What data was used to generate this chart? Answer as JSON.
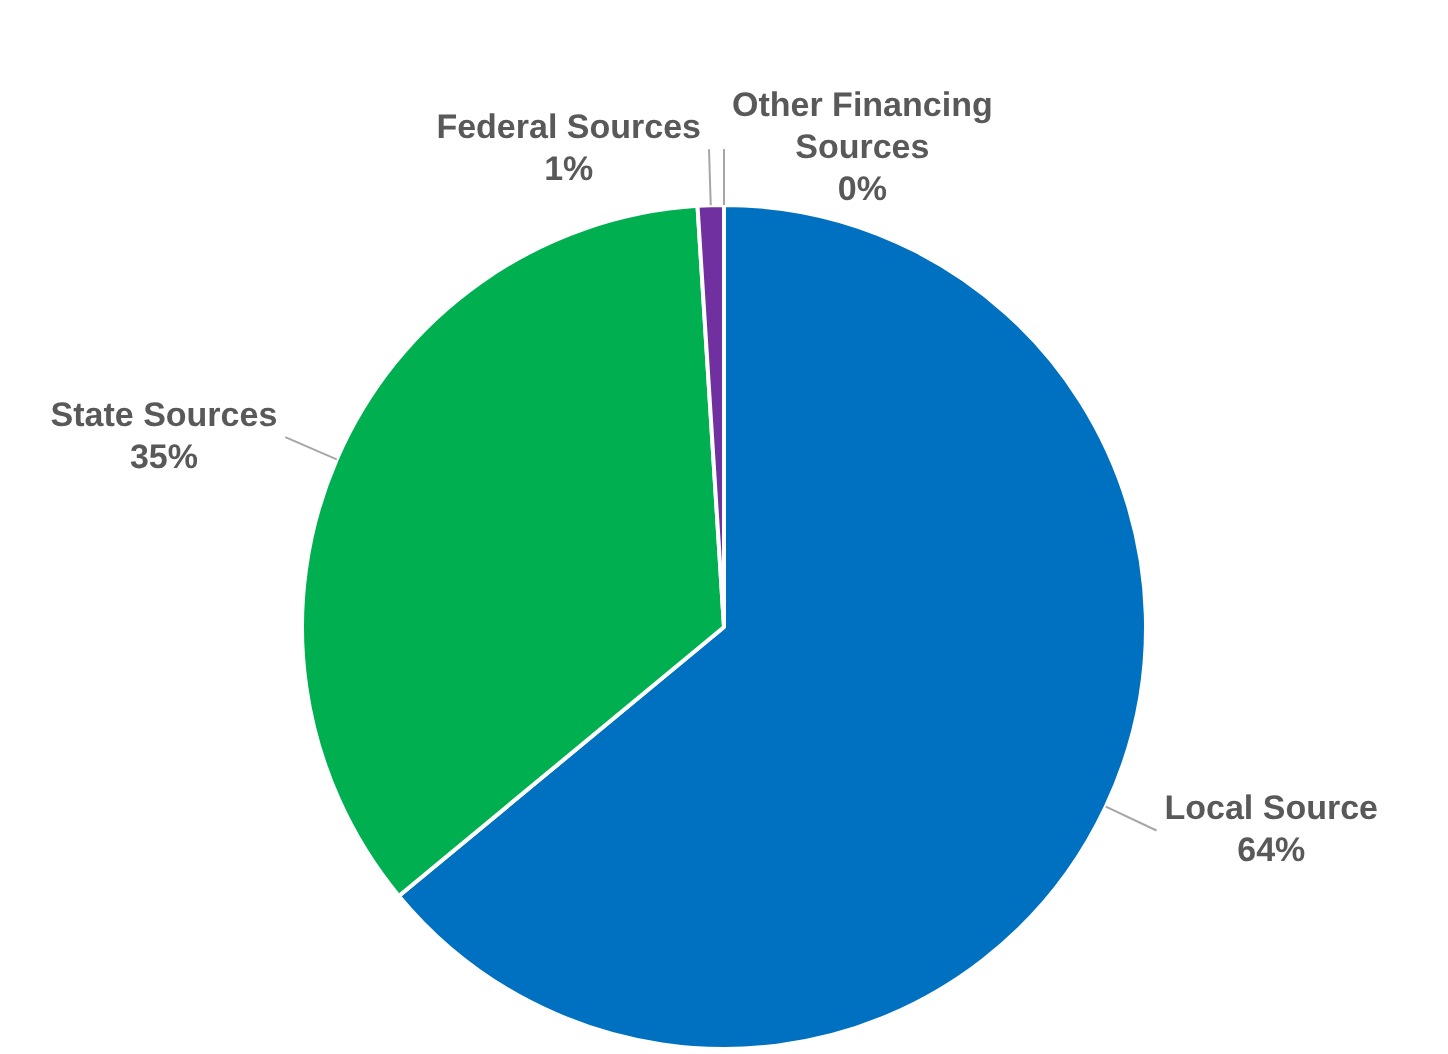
{
  "chart_data": {
    "type": "pie",
    "categories": [
      "Local Source",
      "State Sources",
      "Federal Sources",
      "Other Financing Sources"
    ],
    "values": [
      64,
      35,
      1,
      0
    ],
    "value_labels": [
      "64%",
      "35%",
      "1%",
      "0%"
    ],
    "colors": [
      "#0070c0",
      "#00b050",
      "#7030a0",
      "#4bacc6"
    ],
    "legend": false
  }
}
